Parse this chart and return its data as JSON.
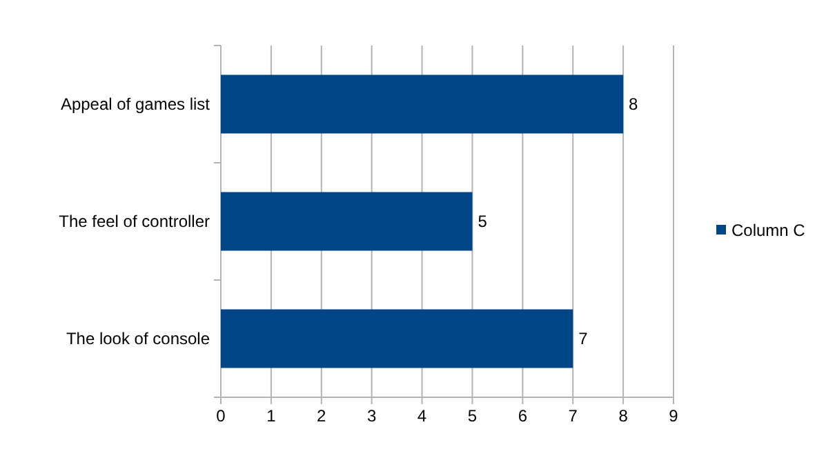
{
  "chart_data": {
    "type": "bar",
    "orientation": "horizontal",
    "categories": [
      "Appeal of games list",
      "The feel of controller",
      "The look of console"
    ],
    "series": [
      {
        "name": "Column C",
        "color": "#004586",
        "values": [
          8,
          5,
          7
        ]
      }
    ],
    "xlim": [
      0,
      9
    ],
    "xticks": [
      0,
      1,
      2,
      3,
      4,
      5,
      6,
      7,
      8,
      9
    ],
    "grid": "x",
    "data_labels": true,
    "legend": "right"
  }
}
